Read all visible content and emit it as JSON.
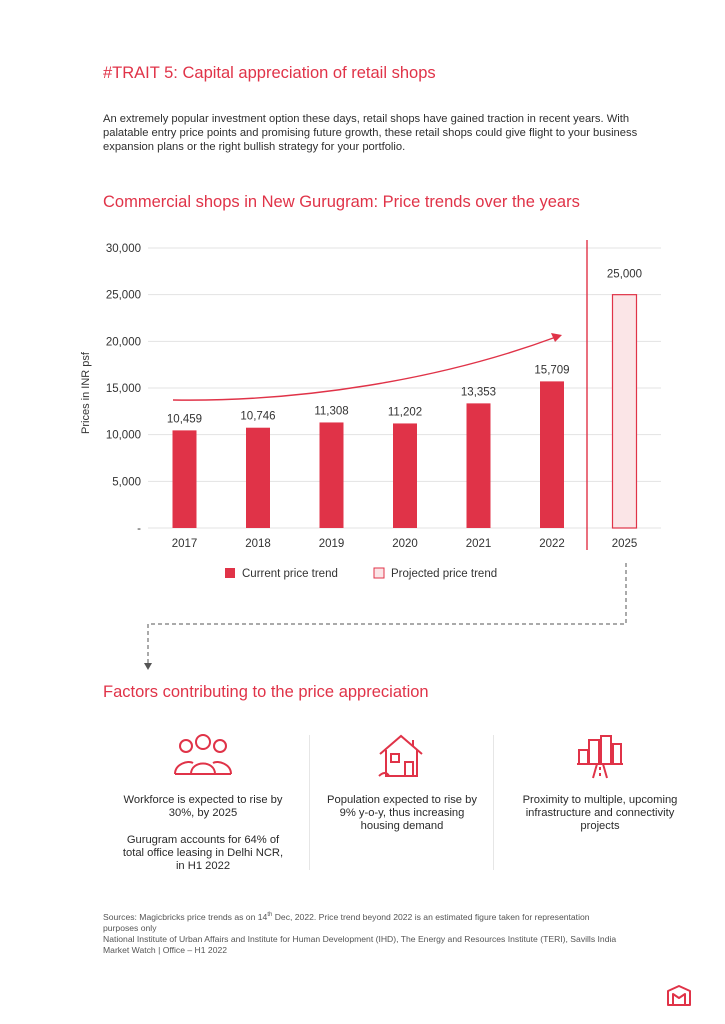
{
  "page": {
    "trait_title": "#TRAIT 5: Capital appreciation of retail shops",
    "intro": "An extremely popular investment option these days, retail shops have gained traction in recent years. With palatable entry price points and promising future growth, these retail shops could give flight to your business expansion plans or the right bullish strategy for your portfolio."
  },
  "chart_data": {
    "type": "bar",
    "title": "Commercial shops in New Gurugram: Price trends over the years",
    "ylabel": "Prices in INR psf",
    "xlabel": "",
    "ylim": [
      0,
      30000
    ],
    "yticks": [
      0,
      5000,
      10000,
      15000,
      20000,
      25000,
      30000
    ],
    "ytick_labels": [
      "-",
      "5,000",
      "10,000",
      "15,000",
      "20,000",
      "25,000",
      "30,000"
    ],
    "grid": true,
    "legend_position": "bottom",
    "series": [
      {
        "name": "Current price trend",
        "categories": [
          "2017",
          "2018",
          "2019",
          "2020",
          "2021",
          "2022"
        ],
        "values": [
          10459,
          10746,
          11308,
          11202,
          13353,
          15709
        ],
        "labels": [
          "10,459",
          "10,746",
          "11,308",
          "11,202",
          "13,353",
          "15,709"
        ]
      },
      {
        "name": "Projected price trend",
        "categories": [
          "2025"
        ],
        "values": [
          25000
        ],
        "labels": [
          "25,000"
        ]
      }
    ],
    "colors": {
      "current": "#e03348",
      "projected_fill": "#fbe5e7",
      "projected_stroke": "#e03348",
      "accent": "#e03348"
    }
  },
  "factors": {
    "title": "Factors contributing to the price appreciation",
    "items": [
      {
        "icon": "people-group-icon",
        "paragraphs": [
          "Workforce is expected to rise by 30%, by 2025",
          "Gurugram accounts for 64% of total office leasing in Delhi NCR, in H1 2022"
        ]
      },
      {
        "icon": "house-icon",
        "paragraphs": [
          "Population expected to rise by 9% y-o-y, thus increasing housing demand"
        ]
      },
      {
        "icon": "city-road-icon",
        "paragraphs": [
          "Proximity to multiple, upcoming infrastructure and connectivity projects"
        ]
      }
    ]
  },
  "sources": {
    "line1_a": "Sources: Magicbricks price trends as on 14",
    "line1_sup": "th",
    "line1_b": " Dec, 2022. Price trend beyond 2022 is an estimated figure taken for representation purposes only",
    "line2": "National Institute of Urban Affairs and Institute for Human Development (IHD), The Energy and Resources Institute (TERI), Savills India Market Watch | Office – H1 2022"
  },
  "logo": {
    "icon": "magicbricks-logo-icon"
  }
}
